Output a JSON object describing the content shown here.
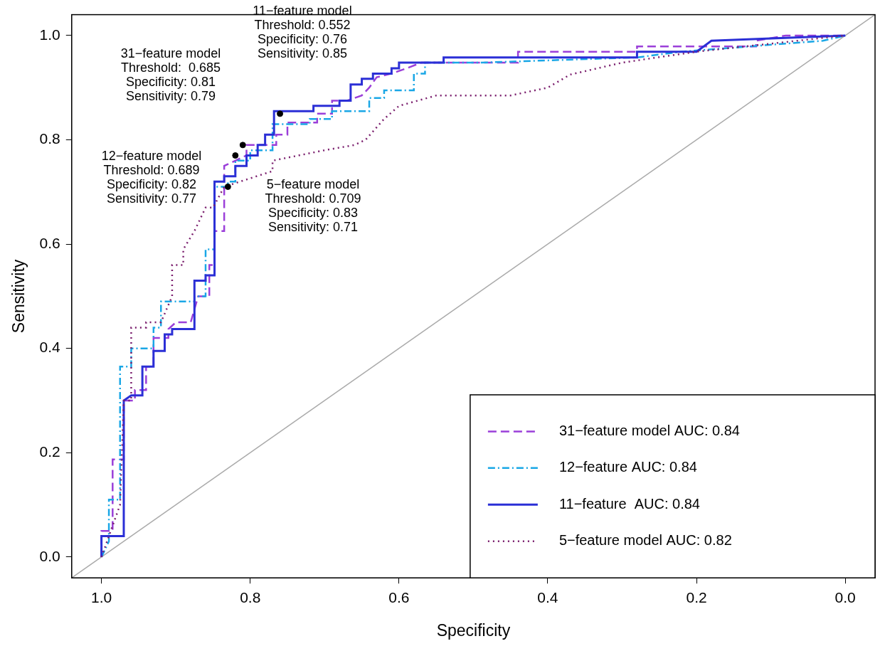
{
  "chart_data": {
    "type": "line",
    "x_label": "Specificity",
    "y_label": "Sensitivity",
    "xlim": [
      1.04,
      -0.04
    ],
    "ylim": [
      -0.04,
      1.04
    ],
    "xticks": [
      {
        "value": 1,
        "label": "1.0"
      },
      0.8,
      0.6,
      0.4,
      0.2,
      {
        "value": 0,
        "label": "0.0"
      }
    ],
    "yticks": [
      {
        "value": 0,
        "label": "0.0"
      },
      0.2,
      0.4,
      0.6,
      0.8,
      {
        "value": 1,
        "label": "1.0"
      }
    ],
    "grid": false,
    "legend": "bottom right",
    "series": [
      {
        "name": "31−feature model AUC: 0.84",
        "color": "#9b3fd9",
        "line_style": "dashed",
        "x": [
          1.0,
          1.0,
          0.985,
          0.985,
          0.97,
          0.97,
          0.955,
          0.955,
          0.94,
          0.94,
          0.93,
          0.93,
          0.91,
          0.91,
          0.9,
          0.88,
          0.87,
          0.855,
          0.855,
          0.848,
          0.848,
          0.835,
          0.835,
          0.82,
          0.805,
          0.805,
          0.765,
          0.765,
          0.75,
          0.75,
          0.71,
          0.71,
          0.69,
          0.69,
          0.67,
          0.65,
          0.64,
          0.63,
          0.61,
          0.59,
          0.57,
          0.44,
          0.44,
          0.28,
          0.28,
          0.12,
          0.12,
          0.08,
          0.0
        ],
        "values": [
          0.0,
          0.05,
          0.05,
          0.187,
          0.187,
          0.3,
          0.3,
          0.32,
          0.32,
          0.365,
          0.365,
          0.42,
          0.42,
          0.437,
          0.45,
          0.45,
          0.5,
          0.5,
          0.56,
          0.56,
          0.625,
          0.625,
          0.75,
          0.76,
          0.77,
          0.79,
          0.79,
          0.81,
          0.81,
          0.833,
          0.833,
          0.85,
          0.85,
          0.875,
          0.875,
          0.885,
          0.9,
          0.92,
          0.927,
          0.937,
          0.948,
          0.948,
          0.969,
          0.969,
          0.979,
          0.979,
          0.99,
          1.0,
          1.0
        ]
      },
      {
        "name": "12−feature AUC: 0.84",
        "color": "#1aa7e6",
        "line_style": "dashdot",
        "x": [
          1.0,
          0.99,
          0.99,
          0.975,
          0.975,
          0.96,
          0.96,
          0.93,
          0.93,
          0.92,
          0.92,
          0.875,
          0.875,
          0.86,
          0.86,
          0.848,
          0.848,
          0.83,
          0.83,
          0.82,
          0.82,
          0.8,
          0.8,
          0.77,
          0.77,
          0.72,
          0.72,
          0.69,
          0.69,
          0.64,
          0.64,
          0.62,
          0.62,
          0.58,
          0.58,
          0.565,
          0.565,
          0.49,
          0.28,
          0.22,
          0.03,
          0.0
        ],
        "values": [
          0.0,
          0.03,
          0.11,
          0.11,
          0.365,
          0.365,
          0.4,
          0.4,
          0.44,
          0.44,
          0.49,
          0.49,
          0.5,
          0.5,
          0.59,
          0.59,
          0.71,
          0.71,
          0.72,
          0.72,
          0.76,
          0.76,
          0.78,
          0.78,
          0.83,
          0.83,
          0.84,
          0.84,
          0.855,
          0.855,
          0.88,
          0.88,
          0.895,
          0.895,
          0.927,
          0.927,
          0.948,
          0.948,
          0.958,
          0.969,
          0.99,
          1.0
        ]
      },
      {
        "name": "11−feature  AUC: 0.84",
        "color": "#2b2fd6",
        "line_style": "solid",
        "x": [
          1.0,
          1.0,
          0.97,
          0.97,
          0.96,
          0.945,
          0.945,
          0.93,
          0.93,
          0.915,
          0.915,
          0.905,
          0.905,
          0.875,
          0.875,
          0.86,
          0.86,
          0.848,
          0.848,
          0.835,
          0.835,
          0.82,
          0.82,
          0.805,
          0.805,
          0.79,
          0.79,
          0.78,
          0.78,
          0.768,
          0.768,
          0.715,
          0.715,
          0.68,
          0.68,
          0.665,
          0.665,
          0.65,
          0.65,
          0.635,
          0.635,
          0.61,
          0.61,
          0.6,
          0.6,
          0.54,
          0.54,
          0.28,
          0.28,
          0.2,
          0.18,
          0.0
        ],
        "values": [
          0.0,
          0.04,
          0.04,
          0.3,
          0.31,
          0.31,
          0.365,
          0.365,
          0.395,
          0.395,
          0.427,
          0.427,
          0.437,
          0.437,
          0.53,
          0.53,
          0.54,
          0.54,
          0.72,
          0.72,
          0.73,
          0.73,
          0.75,
          0.75,
          0.77,
          0.77,
          0.79,
          0.79,
          0.81,
          0.81,
          0.855,
          0.855,
          0.865,
          0.865,
          0.875,
          0.875,
          0.906,
          0.906,
          0.917,
          0.917,
          0.927,
          0.927,
          0.937,
          0.937,
          0.948,
          0.948,
          0.958,
          0.958,
          0.969,
          0.969,
          0.99,
          1.0
        ]
      },
      {
        "name": "5−feature model AUC: 0.82",
        "color": "#7b1f6e",
        "line_style": "dotted",
        "x": [
          1.0,
          0.975,
          0.97,
          0.96,
          0.96,
          0.94,
          0.94,
          0.92,
          0.905,
          0.905,
          0.89,
          0.89,
          0.875,
          0.86,
          0.85,
          0.835,
          0.77,
          0.77,
          0.7,
          0.66,
          0.645,
          0.62,
          0.6,
          0.55,
          0.45,
          0.4,
          0.37,
          0.3,
          0.2,
          0.0
        ],
        "values": [
          0.0,
          0.1,
          0.3,
          0.3,
          0.44,
          0.44,
          0.45,
          0.45,
          0.5,
          0.56,
          0.56,
          0.59,
          0.625,
          0.67,
          0.67,
          0.71,
          0.74,
          0.76,
          0.78,
          0.79,
          0.8,
          0.84,
          0.865,
          0.885,
          0.885,
          0.9,
          0.925,
          0.948,
          0.969,
          1.0
        ]
      }
    ],
    "reference_line": {
      "x": [
        1.04,
        -0.04
      ],
      "values": [
        -0.04,
        1.04
      ],
      "color": "#aaaaaa"
    },
    "annotations": [
      {
        "text": [
          "11−feature model",
          "Threshold: 0.552",
          "Specificity: 0.76",
          "Sensitivity: 0.85"
        ],
        "x": 0.76,
        "y": 0.85,
        "color": "#000000"
      },
      {
        "text": [
          "31−feature model",
          "Threshold:  0.685",
          "Specificity: 0.81",
          "Sensitivity: 0.79"
        ],
        "x": 0.81,
        "y": 0.79,
        "color": "#000000"
      },
      {
        "text": [
          "12−feature model",
          "Threshold: 0.689",
          "Specificity: 0.82",
          "Sensitivity: 0.77"
        ],
        "x": 0.82,
        "y": 0.77,
        "color": "#000000"
      },
      {
        "text": [
          "5−feature model",
          "Threshold: 0.709",
          "Specificity: 0.83",
          "Sensitivity: 0.71"
        ],
        "x": 0.83,
        "y": 0.71,
        "color": "#000000"
      }
    ]
  }
}
